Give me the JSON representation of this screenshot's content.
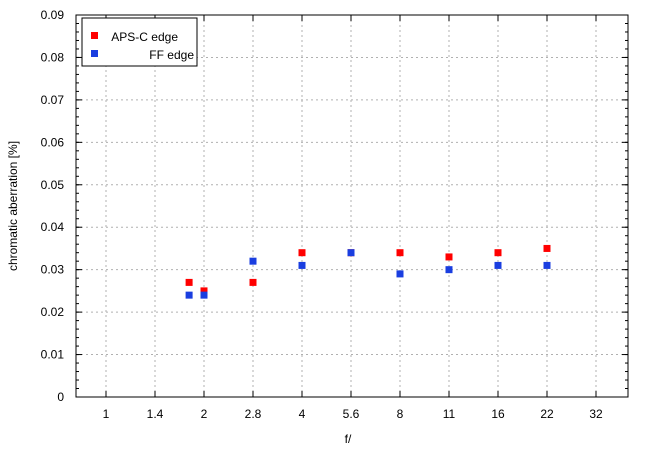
{
  "chart_data": {
    "type": "scatter",
    "title": "",
    "xlabel": "f/",
    "ylabel": "chromatic  aberration [%]",
    "x_scale": "f-stop (log2)",
    "x_ticks": [
      "1",
      "1.4",
      "2",
      "2.8",
      "4",
      "5.6",
      "8",
      "11",
      "16",
      "22",
      "32"
    ],
    "y_ticks": [
      "0",
      "0.01",
      "0.02",
      "0.03",
      "0.04",
      "0.05",
      "0.06",
      "0.07",
      "0.08",
      "0.09"
    ],
    "ylim": [
      0,
      0.09
    ],
    "grid": true,
    "legend_position": "top-left",
    "series": [
      {
        "name": "APS-C edge",
        "color": "#ff0000",
        "x": [
          1.8,
          2,
          2.8,
          4,
          5.6,
          8,
          11,
          16,
          22
        ],
        "y": [
          0.027,
          0.025,
          0.027,
          0.034,
          0.034,
          0.034,
          0.033,
          0.034,
          0.035
        ]
      },
      {
        "name": "FF edge",
        "color": "#1a3ee0",
        "x": [
          1.8,
          2,
          2.8,
          4,
          5.6,
          8,
          11,
          16,
          22
        ],
        "y": [
          0.024,
          0.024,
          0.032,
          0.031,
          0.034,
          0.029,
          0.03,
          0.031,
          0.031
        ]
      }
    ]
  }
}
